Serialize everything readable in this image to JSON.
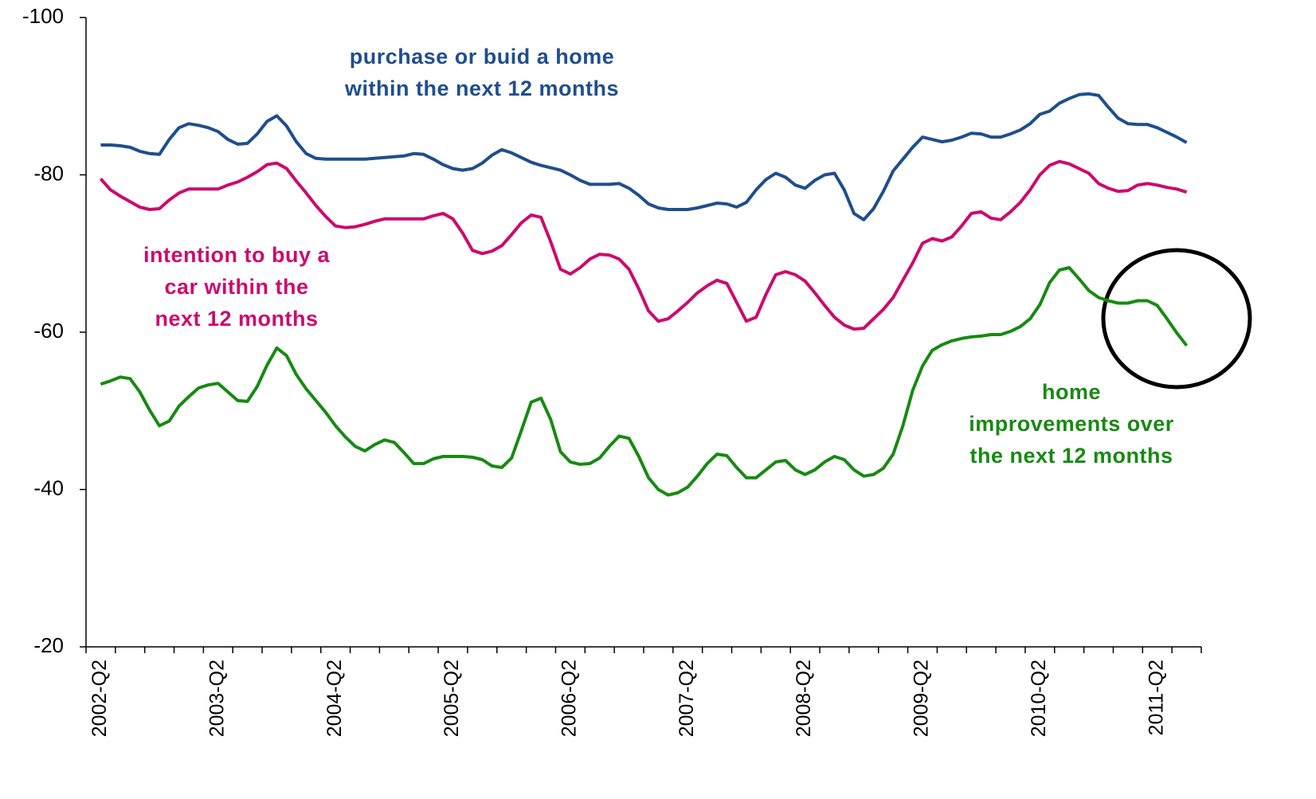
{
  "chart_data": {
    "type": "line",
    "categories": [
      null,
      "2002-Q2",
      null,
      null,
      null,
      null,
      null,
      null,
      null,
      null,
      null,
      null,
      null,
      "2003-Q2",
      null,
      null,
      null,
      null,
      null,
      null,
      null,
      null,
      null,
      null,
      null,
      "2004-Q2",
      null,
      null,
      null,
      null,
      null,
      null,
      null,
      null,
      null,
      null,
      null,
      "2005-Q2",
      null,
      null,
      null,
      null,
      null,
      null,
      null,
      null,
      null,
      null,
      null,
      "2006-Q2",
      null,
      null,
      null,
      null,
      null,
      null,
      null,
      null,
      null,
      null,
      null,
      "2007-Q2",
      null,
      null,
      null,
      null,
      null,
      null,
      null,
      null,
      null,
      null,
      null,
      "2008-Q2",
      null,
      null,
      null,
      null,
      null,
      null,
      null,
      null,
      null,
      null,
      null,
      "2009-Q2",
      null,
      null,
      null,
      null,
      null,
      null,
      null,
      null,
      null,
      null,
      null,
      "2010-Q2",
      null,
      null,
      null,
      null,
      null,
      null,
      null,
      null,
      null,
      null,
      null,
      "2011-Q2",
      null,
      null,
      null,
      null
    ],
    "series": [
      {
        "name": [
          "purchase or buid a home",
          "within the next 12 months"
        ],
        "color": "#1f4e8c",
        "values": [
          null,
          -83.8,
          -83.8,
          -83.7,
          -83.5,
          -83.0,
          -82.7,
          -82.6,
          -84.5,
          -86,
          -86.5,
          -86.3,
          -86,
          -85.5,
          -84.5,
          -83.9,
          -84,
          -85.2,
          -86.8,
          -87.5,
          -86.2,
          -84.2,
          -82.7,
          -82.1,
          -82,
          -82,
          -82,
          -82,
          -82,
          -82.1,
          -82.2,
          -82.3,
          -82.4,
          -82.7,
          -82.6,
          -82,
          -81.3,
          -80.8,
          -80.6,
          -80.8,
          -81.5,
          -82.5,
          -83.2,
          -82.8,
          -82.2,
          -81.6,
          -81.2,
          -80.9,
          -80.6,
          -80,
          -79.3,
          -78.8,
          -78.8,
          -78.8,
          -78.9,
          -78.3,
          -77.4,
          -76.3,
          -75.8,
          -75.6,
          -75.6,
          -75.6,
          -75.8,
          -76.1,
          -76.4,
          -76.3,
          -75.9,
          -76.5,
          -78.1,
          -79.4,
          -80.2,
          -79.7,
          -78.7,
          -78.3,
          -79.3,
          -80,
          -80.2,
          -78.1,
          -75.1,
          -74.3,
          -75.7,
          -77.9,
          -80.5,
          -82,
          -83.5,
          -84.8,
          -84.5,
          -84.2,
          -84.4,
          -84.8,
          -85.3,
          -85.2,
          -84.8,
          -84.8,
          -85.2,
          -85.7,
          -86.5,
          -87.7,
          -88.1,
          -89.1,
          -89.7,
          -90.2,
          -90.3,
          -90.1,
          -88.6,
          -87.2,
          -86.5,
          -86.4,
          -86.4,
          -86,
          -85.4,
          -84.8,
          -84.1,
          null
        ]
      },
      {
        "name": [
          "intention to buy a",
          "car within the",
          "next 12 months"
        ],
        "color": "#cc0a6e",
        "values": [
          null,
          -79.5,
          -78.1,
          -77.3,
          -76.6,
          -75.9,
          -75.6,
          -75.7,
          -76.8,
          -77.7,
          -78.2,
          -78.2,
          -78.2,
          -78.2,
          -78.7,
          -79.1,
          -79.7,
          -80.4,
          -81.3,
          -81.5,
          -80.8,
          -79.2,
          -77.7,
          -76.1,
          -74.7,
          -73.5,
          -73.3,
          -73.4,
          -73.7,
          -74.1,
          -74.4,
          -74.4,
          -74.4,
          -74.4,
          -74.4,
          -74.8,
          -75.1,
          -74.4,
          -72.6,
          -70.4,
          -70,
          -70.3,
          -71,
          -72.4,
          -73.9,
          -74.9,
          -74.6,
          -71.5,
          -68,
          -67.4,
          -68.2,
          -69.3,
          -69.9,
          -69.8,
          -69.3,
          -68,
          -65.5,
          -62.7,
          -61.4,
          -61.7,
          -62.7,
          -63.8,
          -65,
          -65.9,
          -66.6,
          -66.2,
          -63.8,
          -61.4,
          -61.9,
          -64.8,
          -67.3,
          -67.7,
          -67.3,
          -66.5,
          -65,
          -63.4,
          -61.9,
          -60.9,
          -60.4,
          -60.5,
          -61.7,
          -62.9,
          -64.4,
          -66.6,
          -68.8,
          -71.3,
          -71.9,
          -71.6,
          -72.1,
          -73.5,
          -75.1,
          -75.3,
          -74.5,
          -74.3,
          -75.3,
          -76.5,
          -78.1,
          -80,
          -81.2,
          -81.7,
          -81.4,
          -80.8,
          -80.2,
          -78.9,
          -78.3,
          -77.9,
          -78,
          -78.7,
          -78.9,
          -78.7,
          -78.4,
          -78.2,
          -77.8,
          null
        ]
      },
      {
        "name": [
          "home",
          "improvements over",
          "the next 12 months"
        ],
        "color": "#178a12",
        "values": [
          null,
          -53.4,
          -53.8,
          -54.3,
          -54.1,
          -52.4,
          -50.1,
          -48.1,
          -48.7,
          -50.6,
          -51.8,
          -52.9,
          -53.3,
          -53.5,
          -52.4,
          -51.3,
          -51.2,
          -53.1,
          -55.8,
          -58,
          -57,
          -54.6,
          -52.8,
          -51.3,
          -49.8,
          -48.1,
          -46.7,
          -45.5,
          -44.9,
          -45.7,
          -46.3,
          -46,
          -44.7,
          -43.3,
          -43.3,
          -43.9,
          -44.2,
          -44.2,
          -44.2,
          -44.1,
          -43.8,
          -43,
          -42.8,
          -44,
          -47.5,
          -51.1,
          -51.6,
          -48.9,
          -44.8,
          -43.5,
          -43.2,
          -43.3,
          -44,
          -45.5,
          -46.8,
          -46.5,
          -44.2,
          -41.5,
          -40,
          -39.3,
          -39.6,
          -40.3,
          -41.7,
          -43.3,
          -44.5,
          -44.3,
          -42.8,
          -41.5,
          -41.5,
          -42.5,
          -43.5,
          -43.7,
          -42.5,
          -41.9,
          -42.5,
          -43.5,
          -44.2,
          -43.8,
          -42.5,
          -41.7,
          -41.9,
          -42.7,
          -44.5,
          -48.1,
          -52.6,
          -55.7,
          -57.7,
          -58.4,
          -58.9,
          -59.2,
          -59.4,
          -59.5,
          -59.7,
          -59.7,
          -60.1,
          -60.7,
          -61.7,
          -63.5,
          -66.3,
          -67.9,
          -68.2,
          -66.8,
          -65.3,
          -64.4,
          -64,
          -63.7,
          -63.7,
          -64,
          -64,
          -63.4,
          -61.7,
          -59.9,
          -58.3,
          null
        ]
      }
    ],
    "ylim": [
      -100,
      -20
    ],
    "y_reversed": true,
    "yticks": [
      -100,
      -80,
      -60,
      -40,
      -20
    ],
    "grid": false
  }
}
